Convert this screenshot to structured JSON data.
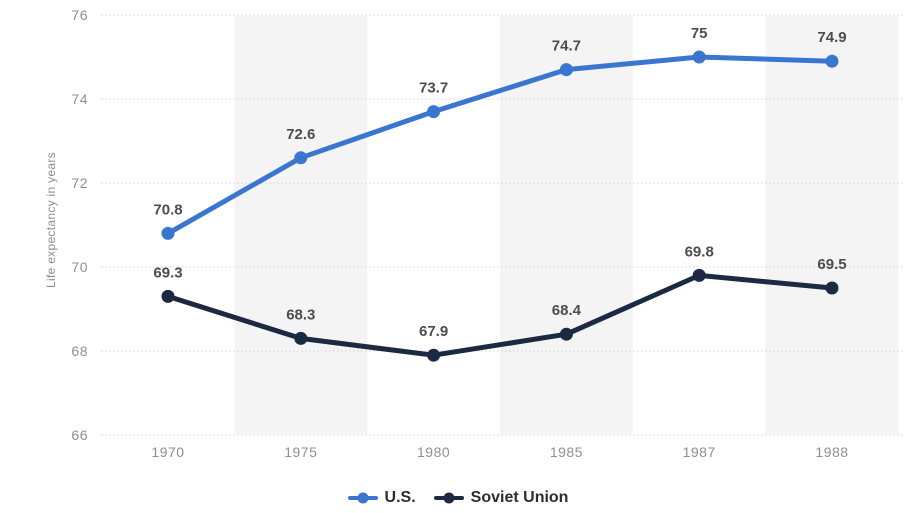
{
  "chart_data": {
    "type": "line",
    "title": "",
    "xlabel": "",
    "ylabel": "Life expectancy in years",
    "categories": [
      "1970",
      "1975",
      "1980",
      "1985",
      "1987",
      "1988"
    ],
    "y_ticks": [
      66,
      68,
      70,
      72,
      74,
      76
    ],
    "ylim": [
      66,
      76
    ],
    "grid": "horizontal-dotted",
    "legend_position": "bottom",
    "striped_background": true,
    "striped_category_indexes": [
      1,
      3,
      5
    ],
    "series": [
      {
        "name": "U.S.",
        "color": "#3a76d0",
        "values": [
          70.8,
          72.6,
          73.7,
          74.7,
          75,
          74.9
        ],
        "point_labels": [
          "70.8",
          "72.6",
          "73.7",
          "74.7",
          "75",
          "74.9"
        ]
      },
      {
        "name": "Soviet Union",
        "color": "#1b2a42",
        "values": [
          69.3,
          68.3,
          67.9,
          68.4,
          69.8,
          69.5
        ],
        "point_labels": [
          "69.3",
          "68.3",
          "67.9",
          "68.4",
          "69.8",
          "69.5"
        ]
      }
    ]
  },
  "legend": {
    "items": [
      {
        "label": "U.S."
      },
      {
        "label": "Soviet Union"
      }
    ]
  },
  "colors": {
    "band": "#f4f4f4",
    "gridline": "#cfcfcf",
    "tick_label": "#8f8f8f",
    "value_label": "#4d4d4d",
    "us_line": "#3a76d0",
    "soviet_line": "#1b2a42",
    "background": "#ffffff"
  }
}
